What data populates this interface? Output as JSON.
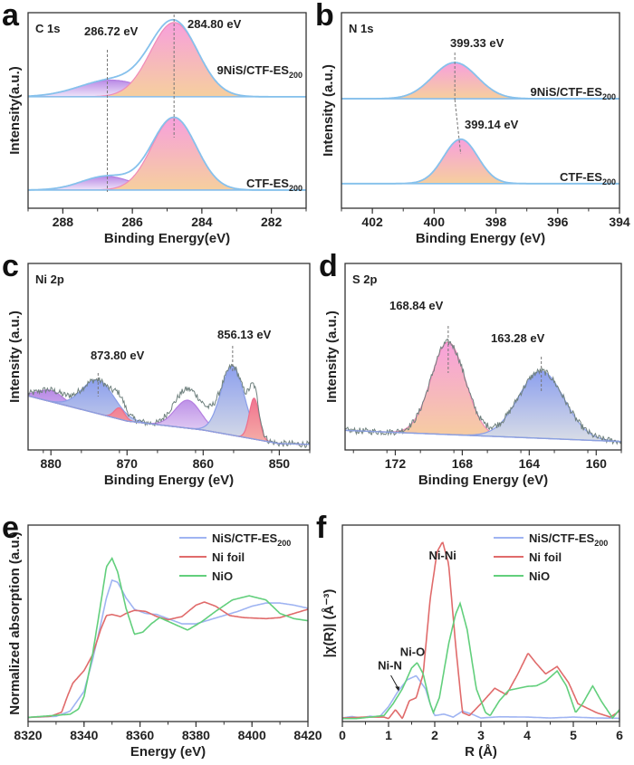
{
  "chart_data": [
    {
      "panel": "a",
      "type": "area",
      "title": "C 1s",
      "xlabel": "Binding Energy(eV)",
      "ylabel": "Intensity(a.u.)",
      "xlim": [
        289,
        281
      ],
      "ylim": [
        0,
        10
      ],
      "xticks": [
        288,
        286,
        284,
        282
      ],
      "spectra": [
        {
          "label": {
            "main": "9NiS/CTF-ES",
            "sub": "200"
          },
          "baseline": 5.7,
          "components": [
            {
              "center": 286.6,
              "amplitude": 0.85,
              "fwhm": 2.2,
              "fill": "purple"
            },
            {
              "center": 284.8,
              "amplitude": 3.8,
              "fwhm": 1.6,
              "fill": "pink"
            }
          ]
        },
        {
          "label": {
            "main": "CTF-ES",
            "sub": "200"
          },
          "baseline": 0.93,
          "components": [
            {
              "center": 286.75,
              "amplitude": 0.7,
              "fwhm": 1.7,
              "fill": "purple"
            },
            {
              "center": 284.8,
              "amplitude": 3.7,
              "fwhm": 1.5,
              "fill": "pink"
            }
          ]
        }
      ],
      "annotations": [
        {
          "text": "286.72 eV",
          "x": 286.72
        },
        {
          "text": "284.80 eV",
          "x": 284.8
        }
      ]
    },
    {
      "panel": "b",
      "type": "area",
      "title": "N 1s",
      "xlabel": "Binding Energy (eV)",
      "ylabel": "Intensity (a.u.)",
      "xlim": [
        403,
        394
      ],
      "ylim": [
        0,
        10
      ],
      "xticks": [
        402,
        400,
        398,
        396,
        394
      ],
      "spectra": [
        {
          "label": {
            "main": "9NiS/CTF-ES",
            "sub": "200"
          },
          "baseline": 5.6,
          "components": [
            {
              "center": 399.33,
              "amplitude": 1.85,
              "fwhm": 1.7,
              "fill": "pink"
            }
          ]
        },
        {
          "label": {
            "main": "CTF-ES",
            "sub": "200"
          },
          "baseline": 1.26,
          "components": [
            {
              "center": 399.14,
              "amplitude": 2.27,
              "fwhm": 1.3,
              "fill": "pink"
            }
          ]
        }
      ],
      "annotations": [
        {
          "text": "399.33 eV",
          "x": 399.33
        },
        {
          "text": "399.14 eV",
          "x": 399.14
        }
      ]
    },
    {
      "panel": "c",
      "type": "area",
      "title": "Ni 2p",
      "xlabel": "Binding Energy (eV)",
      "ylabel": "Intensity (a.u.)",
      "xlim": [
        883,
        846
      ],
      "ylim": [
        0,
        10
      ],
      "xticks": [
        880,
        870,
        860,
        850
      ],
      "background": [
        [
          883,
          2.9
        ],
        [
          870,
          1.55
        ],
        [
          860,
          1.07
        ],
        [
          850,
          0.34
        ],
        [
          846,
          0.3
        ]
      ],
      "components": [
        {
          "center": 880.0,
          "amplitude": 0.6,
          "fwhm": 4,
          "fill": "purple"
        },
        {
          "center": 873.8,
          "amplitude": 1.8,
          "fwhm": 5,
          "fill": "blue"
        },
        {
          "center": 871.0,
          "amplitude": 0.6,
          "fwhm": 1.6,
          "fill": "red"
        },
        {
          "center": 862.0,
          "amplitude": 1.5,
          "fwhm": 4,
          "fill": "purple"
        },
        {
          "center": 856.13,
          "amplitude": 3.7,
          "fwhm": 3.6,
          "fill": "blue"
        },
        {
          "center": 853.3,
          "amplitude": 2.2,
          "fwhm": 1.5,
          "fill": "red"
        }
      ],
      "annotations": [
        {
          "text": "873.80 eV",
          "x": 873.8
        },
        {
          "text": "856.13 eV",
          "x": 856.13
        }
      ]
    },
    {
      "panel": "d",
      "type": "area",
      "title": "S 2p",
      "xlabel": "Binding Energy (eV)",
      "ylabel": "Intensity (a.u.)",
      "xlim": [
        175,
        158.5
      ],
      "ylim": [
        0,
        10
      ],
      "xticks": [
        172,
        168,
        164,
        160
      ],
      "background": [
        [
          175,
          1.05
        ],
        [
          158.5,
          0.45
        ]
      ],
      "components": [
        {
          "center": 168.84,
          "amplitude": 4.95,
          "fwhm": 2.4,
          "fill": "pink"
        },
        {
          "center": 163.28,
          "amplitude": 3.6,
          "fwhm": 3.2,
          "fill": "blue"
        }
      ],
      "annotations": [
        {
          "text": "168.84 eV",
          "x": 168.84
        },
        {
          "text": "163.28 eV",
          "x": 163.28
        }
      ]
    },
    {
      "panel": "e",
      "type": "line",
      "xlabel": "Energy (eV)",
      "ylabel": "Normalized absorption (a.u.)",
      "xlim": [
        8320,
        8420
      ],
      "ylim": [
        -0.04,
        1.85
      ],
      "xticks": [
        8320,
        8340,
        8360,
        8380,
        8400,
        8420
      ],
      "legend_position": "top-right",
      "series": [
        {
          "name": {
            "main": "NiS/CTF-ES",
            "sub": "200"
          },
          "color": "#9fb4f2",
          "points": [
            [
              8320,
              0
            ],
            [
              8330,
              0.01
            ],
            [
              8335,
              0.06
            ],
            [
              8340,
              0.25
            ],
            [
              8343,
              0.55
            ],
            [
              8346,
              0.9
            ],
            [
              8348,
              1.15
            ],
            [
              8350,
              1.32
            ],
            [
              8352,
              1.3
            ],
            [
              8355,
              1.15
            ],
            [
              8358,
              1.04
            ],
            [
              8362,
              1.0
            ],
            [
              8366,
              0.99
            ],
            [
              8370,
              0.95
            ],
            [
              8375,
              0.9
            ],
            [
              8380,
              0.9
            ],
            [
              8385,
              0.94
            ],
            [
              8390,
              0.98
            ],
            [
              8395,
              1.02
            ],
            [
              8400,
              1.07
            ],
            [
              8405,
              1.1
            ],
            [
              8410,
              1.1
            ],
            [
              8415,
              1.08
            ],
            [
              8420,
              1.05
            ]
          ]
        },
        {
          "name": {
            "main": "Ni foil",
            "sub": ""
          },
          "color": "#e06b6b",
          "points": [
            [
              8320,
              0
            ],
            [
              8328,
              0.01
            ],
            [
              8332,
              0.05
            ],
            [
              8334,
              0.2
            ],
            [
              8336,
              0.33
            ],
            [
              8340,
              0.45
            ],
            [
              8343,
              0.6
            ],
            [
              8346,
              0.85
            ],
            [
              8348,
              0.98
            ],
            [
              8350,
              0.99
            ],
            [
              8353,
              0.97
            ],
            [
              8355,
              1.0
            ],
            [
              8358,
              1.03
            ],
            [
              8362,
              1.02
            ],
            [
              8366,
              0.97
            ],
            [
              8370,
              0.94
            ],
            [
              8375,
              0.97
            ],
            [
              8380,
              1.08
            ],
            [
              8383,
              1.11
            ],
            [
              8387,
              1.07
            ],
            [
              8392,
              0.98
            ],
            [
              8397,
              0.96
            ],
            [
              8405,
              0.95
            ],
            [
              8410,
              0.96
            ],
            [
              8415,
              1.0
            ],
            [
              8420,
              1.04
            ]
          ]
        },
        {
          "name": {
            "main": "NiO",
            "sub": ""
          },
          "color": "#62cf7c",
          "points": [
            [
              8320,
              0
            ],
            [
              8335,
              0.03
            ],
            [
              8338,
              0.08
            ],
            [
              8340,
              0.2
            ],
            [
              8343,
              0.6
            ],
            [
              8346,
              1.1
            ],
            [
              8348,
              1.45
            ],
            [
              8350,
              1.53
            ],
            [
              8352,
              1.4
            ],
            [
              8355,
              1.05
            ],
            [
              8358,
              0.8
            ],
            [
              8361,
              0.82
            ],
            [
              8364,
              0.9
            ],
            [
              8367,
              0.96
            ],
            [
              8372,
              0.9
            ],
            [
              8377,
              0.84
            ],
            [
              8382,
              0.92
            ],
            [
              8387,
              1.02
            ],
            [
              8393,
              1.13
            ],
            [
              8399,
              1.17
            ],
            [
              8405,
              1.13
            ],
            [
              8410,
              1.0
            ],
            [
              8415,
              0.95
            ],
            [
              8420,
              0.93
            ]
          ]
        }
      ]
    },
    {
      "panel": "f",
      "type": "line",
      "xlabel": "R (Å)",
      "ylabel": "|χ(R)|  (Å⁻³)",
      "xlim": [
        0,
        6
      ],
      "ylim": [
        -0.1,
        6.5
      ],
      "xticks": [
        0,
        1,
        2,
        3,
        4,
        5,
        6
      ],
      "legend_position": "top-right",
      "series": [
        {
          "name": {
            "main": "NiS/CTF-ES",
            "sub": "200"
          },
          "color": "#9fb4f2",
          "points": [
            [
              0,
              0.02
            ],
            [
              0.2,
              0.07
            ],
            [
              0.4,
              0.02
            ],
            [
              0.6,
              0.08
            ],
            [
              0.8,
              0.05
            ],
            [
              1.0,
              0.4
            ],
            [
              1.2,
              0.9
            ],
            [
              1.4,
              1.3
            ],
            [
              1.6,
              1.44
            ],
            [
              1.8,
              1.0
            ],
            [
              1.9,
              0.5
            ],
            [
              2.0,
              0.1
            ],
            [
              2.2,
              0.15
            ],
            [
              2.4,
              0.05
            ],
            [
              2.6,
              0.25
            ],
            [
              2.8,
              0.15
            ],
            [
              3.0,
              0.02
            ],
            [
              3.4,
              0.06
            ],
            [
              4.0,
              0.05
            ],
            [
              4.5,
              0.02
            ],
            [
              5.0,
              0.05
            ],
            [
              5.5,
              0.02
            ],
            [
              6.0,
              0.01
            ]
          ]
        },
        {
          "name": {
            "main": "Ni foil",
            "sub": ""
          },
          "color": "#e06b6b",
          "points": [
            [
              0,
              0.02
            ],
            [
              0.5,
              0.05
            ],
            [
              0.9,
              0.05
            ],
            [
              1.0,
              0.0
            ],
            [
              1.15,
              0.3
            ],
            [
              1.3,
              0.0
            ],
            [
              1.45,
              0.6
            ],
            [
              1.6,
              0.7
            ],
            [
              1.75,
              1.5
            ],
            [
              1.9,
              4.0
            ],
            [
              2.05,
              5.6
            ],
            [
              2.17,
              5.94
            ],
            [
              2.3,
              5.2
            ],
            [
              2.45,
              2.5
            ],
            [
              2.6,
              0.2
            ],
            [
              2.75,
              0.1
            ],
            [
              3.0,
              0.5
            ],
            [
              3.3,
              1.02
            ],
            [
              3.55,
              0.8
            ],
            [
              3.8,
              1.5
            ],
            [
              4.02,
              2.2
            ],
            [
              4.2,
              1.85
            ],
            [
              4.4,
              1.5
            ],
            [
              4.65,
              1.75
            ],
            [
              4.9,
              1.2
            ],
            [
              5.1,
              0.5
            ],
            [
              5.5,
              0.2
            ],
            [
              5.8,
              0.05
            ],
            [
              6.0,
              0.25
            ]
          ]
        },
        {
          "name": {
            "main": "NiO",
            "sub": ""
          },
          "color": "#62cf7c",
          "points": [
            [
              0,
              0.0
            ],
            [
              0.3,
              0.0
            ],
            [
              0.6,
              0.05
            ],
            [
              0.9,
              0.1
            ],
            [
              1.1,
              0.5
            ],
            [
              1.3,
              1.0
            ],
            [
              1.5,
              1.7
            ],
            [
              1.62,
              1.88
            ],
            [
              1.75,
              1.5
            ],
            [
              1.9,
              0.5
            ],
            [
              1.97,
              0.2
            ],
            [
              2.1,
              0.7
            ],
            [
              2.3,
              2.5
            ],
            [
              2.45,
              3.5
            ],
            [
              2.55,
              3.87
            ],
            [
              2.7,
              3.0
            ],
            [
              2.9,
              1.0
            ],
            [
              3.1,
              0.2
            ],
            [
              3.2,
              0.1
            ],
            [
              3.4,
              0.6
            ],
            [
              3.6,
              0.95
            ],
            [
              4.0,
              1.08
            ],
            [
              4.2,
              1.1
            ],
            [
              4.4,
              1.25
            ],
            [
              4.65,
              1.6
            ],
            [
              4.85,
              1.1
            ],
            [
              5.05,
              0.2
            ],
            [
              5.2,
              0.5
            ],
            [
              5.42,
              1.1
            ],
            [
              5.6,
              0.6
            ],
            [
              5.85,
              0.02
            ],
            [
              6.0,
              0.3
            ]
          ]
        }
      ],
      "annotations": [
        {
          "text": "Ni-Ni",
          "x": 2.17
        },
        {
          "text": "Ni-O",
          "x": 1.62
        },
        {
          "text": "Ni-N",
          "x": 1.25
        }
      ]
    }
  ]
}
